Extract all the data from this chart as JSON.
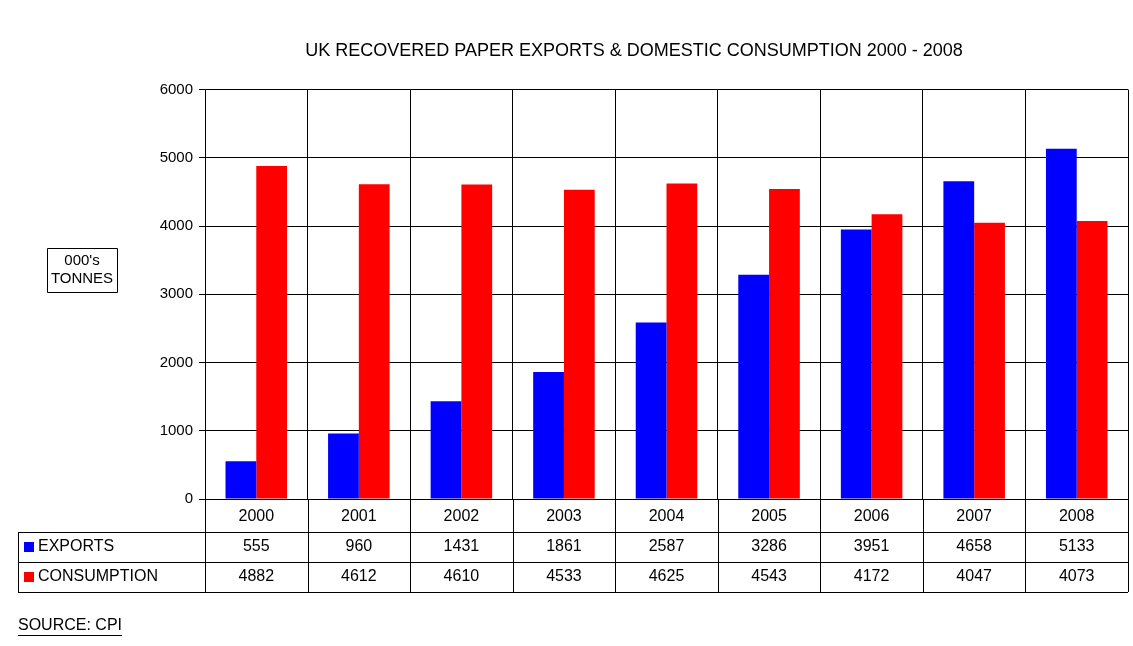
{
  "chart_data": {
    "type": "bar",
    "title": "UK RECOVERED PAPER EXPORTS & DOMESTIC CONSUMPTION 2000 - 2008",
    "ylabel": "000's TONNES",
    "categories": [
      "2000",
      "2001",
      "2002",
      "2003",
      "2004",
      "2005",
      "2006",
      "2007",
      "2008"
    ],
    "series": [
      {
        "name": "EXPORTS",
        "color": "#0000ff",
        "values": [
          555,
          960,
          1431,
          1861,
          2587,
          3286,
          3951,
          4658,
          5133
        ]
      },
      {
        "name": "CONSUMPTION",
        "color": "#ff0000",
        "values": [
          4882,
          4612,
          4610,
          4533,
          4625,
          4543,
          4172,
          4047,
          4073
        ]
      }
    ],
    "ylim": [
      0,
      6000
    ],
    "yticks": [
      0,
      1000,
      2000,
      3000,
      4000,
      5000,
      6000
    ],
    "grid": true,
    "legend": "bottom",
    "data_labels": true,
    "annotations": [
      "SOURCE: CPI"
    ]
  }
}
